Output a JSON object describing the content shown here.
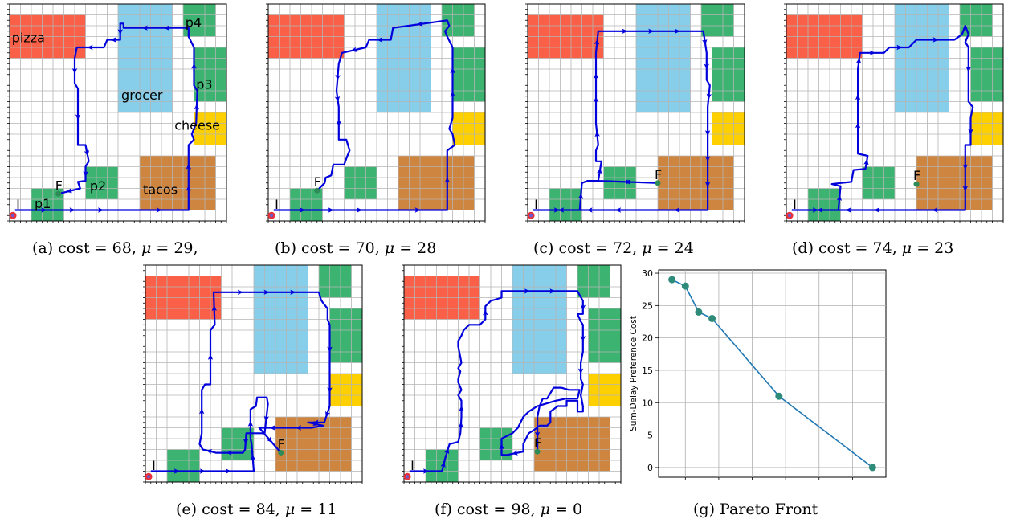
{
  "panels": [
    {
      "id": "a",
      "caption_tag": "(a)",
      "cost": 68,
      "mu": 29,
      "caption_suffix": ",",
      "labels": {
        "pizza": "pizza",
        "grocer": "grocer",
        "p1": "p1",
        "p2": "p2",
        "p3": "p3",
        "p4": "p4",
        "cheese": "cheese",
        "tacos": "tacos",
        "I": "I",
        "F": "F"
      },
      "show_region_labels": true,
      "final": [
        4.5,
        17.5
      ],
      "path": [
        [
          0.5,
          19
        ],
        [
          11,
          19
        ],
        [
          16.5,
          19
        ],
        [
          16.5,
          13
        ],
        [
          17,
          12.5
        ],
        [
          16.8,
          12
        ],
        [
          17.2,
          11
        ],
        [
          17.3,
          8
        ],
        [
          17,
          7.5
        ],
        [
          17,
          4
        ],
        [
          16.5,
          3
        ],
        [
          16.5,
          2.2
        ],
        [
          10.5,
          2.2
        ],
        [
          10.5,
          1.8
        ],
        [
          10.2,
          1.8
        ],
        [
          10.2,
          3.3
        ],
        [
          9,
          3.3
        ],
        [
          8.7,
          4
        ],
        [
          6.2,
          4
        ],
        [
          6,
          5
        ],
        [
          6,
          7.3
        ],
        [
          6.3,
          7.8
        ],
        [
          6.3,
          13
        ],
        [
          7,
          13
        ],
        [
          7.3,
          14.5
        ],
        [
          7,
          15
        ],
        [
          7,
          16.3
        ],
        [
          6.3,
          16.4
        ],
        [
          6.5,
          17
        ],
        [
          4.5,
          17.5
        ]
      ]
    },
    {
      "id": "b",
      "caption_tag": "(b)",
      "cost": 70,
      "mu": 28,
      "caption_suffix": "",
      "labels": {
        "I": "I",
        "F": "F"
      },
      "show_region_labels": false,
      "final": [
        4.5,
        17.2
      ],
      "path": [
        [
          0.5,
          19
        ],
        [
          11,
          19
        ],
        [
          16.5,
          19
        ],
        [
          16.5,
          13.5
        ],
        [
          17.2,
          13
        ],
        [
          17,
          12
        ],
        [
          16.7,
          11.5
        ],
        [
          17,
          10.5
        ],
        [
          17,
          4
        ],
        [
          16.5,
          3
        ],
        [
          16.3,
          2.5
        ],
        [
          16.7,
          2
        ],
        [
          16.5,
          1.5
        ],
        [
          11.5,
          2.2
        ],
        [
          11.3,
          3.3
        ],
        [
          9.3,
          3.3
        ],
        [
          9,
          4
        ],
        [
          6.8,
          4.5
        ],
        [
          6.5,
          5.5
        ],
        [
          6.3,
          8
        ],
        [
          6.5,
          9.5
        ],
        [
          6.5,
          12.5
        ],
        [
          7.2,
          12.5
        ],
        [
          7.5,
          13.5
        ],
        [
          7.3,
          14
        ],
        [
          7,
          14.8
        ],
        [
          6,
          14.8
        ],
        [
          5.8,
          15.8
        ],
        [
          5.3,
          16
        ],
        [
          5.2,
          16.5
        ],
        [
          4.5,
          17.2
        ]
      ]
    },
    {
      "id": "c",
      "caption_tag": "(c)",
      "cost": 72,
      "mu": 24,
      "caption_suffix": "",
      "labels": {
        "I": "I",
        "F": "F"
      },
      "show_region_labels": false,
      "final": [
        12,
        16.5
      ],
      "path": [
        [
          0.5,
          19
        ],
        [
          4.8,
          19
        ],
        [
          5,
          16.5
        ],
        [
          5.5,
          16.3
        ],
        [
          6.5,
          16.3
        ],
        [
          12,
          16.5
        ],
        [
          6.5,
          16.3
        ],
        [
          6.8,
          14.5
        ],
        [
          6.3,
          14.5
        ],
        [
          6.3,
          13.5
        ],
        [
          6.5,
          13
        ],
        [
          6.3,
          11
        ],
        [
          6.3,
          4.5
        ],
        [
          6.5,
          2.5
        ],
        [
          16.2,
          2.5
        ],
        [
          16.5,
          4.5
        ],
        [
          16.5,
          7
        ],
        [
          16.8,
          7.5
        ],
        [
          16.6,
          9.5
        ],
        [
          16.6,
          19
        ],
        [
          11,
          19
        ],
        [
          0.5,
          19
        ]
      ]
    },
    {
      "id": "d",
      "caption_tag": "(d)",
      "cost": 74,
      "mu": 23,
      "caption_suffix": "",
      "labels": {
        "I": "I",
        "F": "F"
      },
      "show_region_labels": false,
      "final": [
        12,
        16.6
      ],
      "path": [
        [
          0.5,
          19
        ],
        [
          4.8,
          19
        ],
        [
          5,
          16.8
        ],
        [
          4.2,
          16.6
        ],
        [
          5,
          16.5
        ],
        [
          6,
          16.4
        ],
        [
          6.2,
          15.3
        ],
        [
          7.3,
          15.2
        ],
        [
          7.5,
          14
        ],
        [
          6.6,
          13.8
        ],
        [
          6.6,
          6
        ],
        [
          6.8,
          4.5
        ],
        [
          9,
          4.5
        ],
        [
          9.5,
          4
        ],
        [
          11.3,
          4
        ],
        [
          12,
          3.3
        ],
        [
          15.5,
          3.3
        ],
        [
          16.2,
          2.8
        ],
        [
          16.5,
          2
        ],
        [
          16.8,
          2.8
        ],
        [
          16.5,
          3.5
        ],
        [
          16.8,
          4
        ],
        [
          16.8,
          8
        ],
        [
          16.8,
          9
        ],
        [
          17.2,
          9.5
        ],
        [
          17,
          10.5
        ],
        [
          17,
          13
        ],
        [
          16.5,
          13
        ],
        [
          16.5,
          19
        ],
        [
          11,
          19
        ],
        [
          0.5,
          19
        ]
      ]
    },
    {
      "id": "e",
      "caption_tag": "(e)",
      "cost": 84,
      "mu": 11,
      "caption_suffix": "",
      "labels": {
        "I": "I",
        "F": "F"
      },
      "show_region_labels": false,
      "final": [
        12.5,
        17.3
      ],
      "path": [
        [
          0.5,
          19
        ],
        [
          10,
          19
        ],
        [
          9.8,
          16.5
        ],
        [
          9.7,
          16
        ],
        [
          9.7,
          13.3
        ],
        [
          10.2,
          13
        ],
        [
          10.3,
          12.2
        ],
        [
          11.2,
          12.2
        ],
        [
          11.3,
          12.8
        ],
        [
          11,
          15.5
        ],
        [
          10.3,
          15.5
        ],
        [
          9.3,
          15.5
        ],
        [
          9.2,
          17
        ],
        [
          9,
          17.3
        ],
        [
          6.5,
          17.3
        ],
        [
          5.3,
          17
        ],
        [
          5,
          16.5
        ],
        [
          5.2,
          15.5
        ],
        [
          5.2,
          11.5
        ],
        [
          5.5,
          11
        ],
        [
          6,
          11
        ],
        [
          6,
          6
        ],
        [
          6.4,
          5.5
        ],
        [
          6.3,
          2.5
        ],
        [
          16,
          2.5
        ],
        [
          16.2,
          3.2
        ],
        [
          16.4,
          3.5
        ],
        [
          16.8,
          4
        ],
        [
          16.8,
          5
        ],
        [
          17,
          5.5
        ],
        [
          17,
          10
        ],
        [
          17,
          13
        ],
        [
          16.5,
          14.5
        ],
        [
          15,
          14.5
        ],
        [
          16.4,
          14.8
        ],
        [
          15.3,
          15
        ],
        [
          13,
          15
        ],
        [
          10.5,
          15
        ],
        [
          12.5,
          17.3
        ]
      ]
    },
    {
      "id": "f",
      "caption_tag": "(f)",
      "cost": 98,
      "mu": 0,
      "caption_suffix": "",
      "labels": {
        "I": "I",
        "F": "F"
      },
      "show_region_labels": false,
      "final": [
        12.3,
        17.2
      ],
      "path": [
        [
          0.5,
          19
        ],
        [
          3.5,
          19
        ],
        [
          3.8,
          17.8
        ],
        [
          4.2,
          16.5
        ],
        [
          5,
          16.3
        ],
        [
          5.2,
          15.5
        ],
        [
          5.3,
          14
        ],
        [
          5.3,
          12.5
        ],
        [
          5,
          12
        ],
        [
          5.3,
          11.5
        ],
        [
          5,
          10.8
        ],
        [
          5,
          10.5
        ],
        [
          5.2,
          9.8
        ],
        [
          5,
          9.5
        ],
        [
          5.3,
          9
        ],
        [
          5.2,
          8.5
        ],
        [
          5,
          7.5
        ],
        [
          5,
          7
        ],
        [
          5.3,
          6.5
        ],
        [
          5.5,
          6
        ],
        [
          6,
          5.5
        ],
        [
          7,
          5.5
        ],
        [
          7.5,
          5
        ],
        [
          7.5,
          3.8
        ],
        [
          8,
          3.3
        ],
        [
          9,
          3
        ],
        [
          9,
          2.4
        ],
        [
          16,
          2.4
        ],
        [
          16.5,
          3.3
        ],
        [
          16.5,
          4.5
        ],
        [
          16,
          4.5
        ],
        [
          16.3,
          5.2
        ],
        [
          16.5,
          5.5
        ],
        [
          16.5,
          8
        ],
        [
          16.3,
          9
        ],
        [
          16.3,
          10.5
        ],
        [
          16.5,
          11
        ],
        [
          16.3,
          12
        ],
        [
          16.5,
          13
        ],
        [
          16.5,
          13.5
        ],
        [
          16,
          13.5
        ],
        [
          16,
          12.5
        ],
        [
          15,
          12.5
        ],
        [
          15,
          13
        ],
        [
          14.2,
          13
        ],
        [
          13.5,
          13.5
        ],
        [
          13.5,
          14.5
        ],
        [
          13.2,
          14.8
        ],
        [
          12.5,
          14.8
        ],
        [
          12,
          15.2
        ],
        [
          11.5,
          15.5
        ],
        [
          11,
          16.5
        ],
        [
          11,
          17.2
        ],
        [
          9.5,
          17.5
        ],
        [
          9,
          17.5
        ],
        [
          9,
          16
        ],
        [
          10,
          15.5
        ],
        [
          10.5,
          15
        ],
        [
          11,
          14
        ],
        [
          11.5,
          13.5
        ],
        [
          12.3,
          13
        ],
        [
          13,
          12.8
        ],
        [
          14,
          12.5
        ],
        [
          15,
          12.3
        ],
        [
          16,
          12.3
        ],
        [
          16.2,
          11.5
        ],
        [
          15.2,
          11.5
        ],
        [
          14.5,
          11.3
        ],
        [
          13.8,
          11.3
        ],
        [
          13.5,
          11.8
        ],
        [
          13.2,
          12.3
        ],
        [
          12.8,
          12.3
        ],
        [
          12.5,
          13
        ],
        [
          12.3,
          14
        ],
        [
          12.3,
          17.2
        ]
      ]
    }
  ],
  "pareto": {
    "caption_tag": "(g)",
    "caption_text": "Pareto Front",
    "ylabel": "Sum-Delay Preference Cost",
    "yticks": [
      0,
      5,
      10,
      15,
      20,
      25,
      30
    ],
    "chart_data": {
      "type": "line",
      "x": [
        68,
        70,
        72,
        74,
        84,
        98
      ],
      "y": [
        29,
        28,
        24,
        23,
        11,
        0
      ],
      "ylabel": "Sum-Delay Preference Cost",
      "xlabel": "",
      "ylim": [
        0,
        30
      ],
      "grid": true,
      "line_color": "#1f77b4",
      "marker_color": "#2e8b7a"
    }
  },
  "colors": {
    "pizza": "#fa6047",
    "grocer": "#87ceeb",
    "green": "#3cb371",
    "cheese": "#ffd000",
    "tacos": "#cd853f",
    "path": "#0000dd",
    "start": "#e8303a",
    "final": "#2e8b57"
  }
}
